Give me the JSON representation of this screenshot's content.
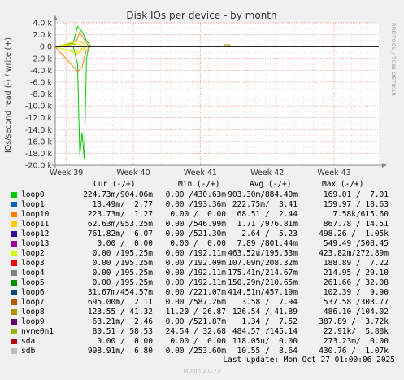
{
  "chart_data": {
    "type": "line",
    "title": "Disk IOs per device - by month",
    "ylabel": "IOs/second read (-) / write (+)",
    "yticks": [
      "4.0 k",
      "2.0 k",
      "0.0",
      "-2.0 k",
      "-4.0 k",
      "-6.0 k",
      "-8.0 k",
      "-10.0 k",
      "-12.0 k",
      "-14.0 k",
      "-16.0 k",
      "-18.0 k",
      "-20.0 k"
    ],
    "ytick_values": [
      4000,
      2000,
      0,
      -2000,
      -4000,
      -6000,
      -8000,
      -10000,
      -12000,
      -14000,
      -16000,
      -18000,
      -20000
    ],
    "ylim": [
      -20000,
      4000
    ],
    "xticks": [
      "Week 39",
      "Week 40",
      "Week 41",
      "Week 42",
      "Week 43"
    ],
    "xtick_positions": [
      0.5,
      3.5,
      6.5,
      9.5,
      12.5
    ],
    "xlim": [
      0,
      14.5
    ],
    "series": [
      {
        "name": "loop0",
        "color": "#00cc00",
        "read": [
          [
            0,
            0
          ],
          [
            0.8,
            0
          ],
          [
            1.0,
            -3000
          ],
          [
            1.1,
            -18500
          ],
          [
            1.2,
            -14500
          ],
          [
            1.3,
            -19000
          ],
          [
            1.4,
            -2000
          ],
          [
            1.5,
            0
          ],
          [
            14.5,
            0
          ]
        ],
        "write": [
          [
            0,
            0
          ],
          [
            0.8,
            600
          ],
          [
            1.0,
            3400
          ],
          [
            1.2,
            2500
          ],
          [
            1.4,
            1000
          ],
          [
            1.6,
            0
          ],
          [
            14.5,
            0
          ]
        ]
      },
      {
        "name": "loop1",
        "color": "#0066b3",
        "read": [
          [
            0,
            0
          ],
          [
            14.5,
            0
          ]
        ],
        "write": [
          [
            0,
            0
          ],
          [
            14.5,
            0
          ]
        ]
      },
      {
        "name": "loop10",
        "color": "#ff8000",
        "read": [
          [
            0,
            0
          ],
          [
            1.0,
            -4200
          ],
          [
            1.2,
            -3500
          ],
          [
            1.4,
            -600
          ],
          [
            1.6,
            0
          ],
          [
            14.5,
            0
          ]
        ],
        "write": [
          [
            0,
            0
          ],
          [
            0.9,
            400
          ],
          [
            1.1,
            2400
          ],
          [
            1.3,
            1200
          ],
          [
            1.5,
            0
          ],
          [
            14.5,
            0
          ]
        ]
      },
      {
        "name": "loop11",
        "color": "#ffcc00",
        "read": [
          [
            0,
            0
          ],
          [
            1.0,
            -1200
          ],
          [
            1.2,
            -600
          ],
          [
            1.4,
            0
          ],
          [
            14.5,
            0
          ]
        ],
        "write": [
          [
            0,
            0
          ],
          [
            1.0,
            900
          ],
          [
            1.2,
            700
          ],
          [
            1.4,
            0
          ],
          [
            14.5,
            0
          ]
        ]
      },
      {
        "name": "loop12",
        "color": "#330099",
        "read": [
          [
            0,
            0
          ],
          [
            14.5,
            0
          ]
        ],
        "write": [
          [
            0,
            0
          ],
          [
            14.5,
            0
          ]
        ]
      },
      {
        "name": "loop13",
        "color": "#990099",
        "read": [
          [
            0,
            0
          ],
          [
            14.5,
            0
          ]
        ],
        "write": [
          [
            0,
            0
          ],
          [
            14.5,
            0
          ]
        ]
      },
      {
        "name": "loop2",
        "color": "#ccff00",
        "read": [
          [
            0,
            0
          ],
          [
            0.9,
            -1000
          ],
          [
            1.1,
            -600
          ],
          [
            1.3,
            0
          ],
          [
            14.5,
            0
          ]
        ],
        "write": [
          [
            0,
            0
          ],
          [
            0.9,
            500
          ],
          [
            1.1,
            300
          ],
          [
            1.3,
            0
          ],
          [
            14.5,
            0
          ]
        ]
      },
      {
        "name": "loop3",
        "color": "#ff0000",
        "read": [
          [
            0,
            0
          ],
          [
            14.5,
            0
          ]
        ],
        "write": [
          [
            0,
            0
          ],
          [
            14.5,
            0
          ]
        ]
      },
      {
        "name": "loop4",
        "color": "#808080",
        "read": [
          [
            0,
            0
          ],
          [
            14.5,
            0
          ]
        ],
        "write": [
          [
            0,
            0
          ],
          [
            14.5,
            0
          ]
        ]
      },
      {
        "name": "loop5",
        "color": "#008f00",
        "read": [
          [
            0,
            0
          ],
          [
            14.5,
            0
          ]
        ],
        "write": [
          [
            0,
            0
          ],
          [
            14.5,
            0
          ]
        ]
      },
      {
        "name": "loop6",
        "color": "#00487d",
        "read": [
          [
            0,
            0
          ],
          [
            14.5,
            0
          ]
        ],
        "write": [
          [
            0,
            0
          ],
          [
            14.5,
            0
          ]
        ]
      },
      {
        "name": "loop7",
        "color": "#b35a00",
        "read": [
          [
            0,
            0
          ],
          [
            14.5,
            0
          ]
        ],
        "write": [
          [
            0,
            0
          ],
          [
            14.5,
            0
          ]
        ]
      },
      {
        "name": "loop8",
        "color": "#b38f00",
        "read": [
          [
            0,
            0
          ],
          [
            14.5,
            0
          ]
        ],
        "write": [
          [
            0,
            0
          ],
          [
            7.5,
            0
          ],
          [
            7.6,
            300
          ],
          [
            7.8,
            300
          ],
          [
            7.9,
            0
          ],
          [
            14.5,
            0
          ]
        ]
      },
      {
        "name": "loop9",
        "color": "#6b006b",
        "read": [
          [
            0,
            0
          ],
          [
            14.5,
            0
          ]
        ],
        "write": [
          [
            0,
            0
          ],
          [
            14.5,
            0
          ]
        ]
      },
      {
        "name": "nvme0n1",
        "color": "#8fb300",
        "read": [
          [
            0,
            0
          ],
          [
            14.5,
            0
          ]
        ],
        "write": [
          [
            0,
            0
          ],
          [
            14.5,
            0
          ]
        ]
      },
      {
        "name": "sda",
        "color": "#b30000",
        "read": [
          [
            0,
            0
          ],
          [
            14.5,
            0
          ]
        ],
        "write": [
          [
            0,
            0
          ],
          [
            14.5,
            0
          ]
        ]
      },
      {
        "name": "sdb",
        "color": "#bebebe",
        "read": [
          [
            0,
            0
          ],
          [
            14.5,
            0
          ]
        ],
        "write": [
          [
            0,
            0
          ],
          [
            14.5,
            0
          ]
        ]
      }
    ]
  },
  "legend": {
    "headers": {
      "cur": "Cur (-/+)",
      "min": "Min (-/+)",
      "avg": "Avg (-/+)",
      "max": "Max (-/+)"
    },
    "rows": [
      {
        "name": "loop0",
        "color": "#00cc00",
        "cur": "224.73m/904.06m",
        "min": "0.00 /430.63m",
        "avg": "903.30m/884.40m",
        "max": "169.01 /  7.01"
      },
      {
        "name": "loop1",
        "color": "#0066b3",
        "cur": "13.49m/  2.77",
        "min": "0.00 /193.36m",
        "avg": "222.75m/  3.41",
        "max": "159.97 / 18.63"
      },
      {
        "name": "loop10",
        "color": "#ff8000",
        "cur": "223.73m/  1.27",
        "min": "0.00 /  0.00",
        "avg": "68.51 /  2.44",
        "max": "7.58k/615.60"
      },
      {
        "name": "loop11",
        "color": "#ffcc00",
        "cur": "62.63m/953.25m",
        "min": "0.00 /546.99m",
        "avg": "1.71 /976.81m",
        "max": "867.78 / 14.51"
      },
      {
        "name": "loop12",
        "color": "#330099",
        "cur": "761.82m/  6.07",
        "min": "0.00 /521.30m",
        "avg": "2.64 /  5.23",
        "max": "498.26 /  1.05k"
      },
      {
        "name": "loop13",
        "color": "#990099",
        "cur": "0.00 /  0.00",
        "min": "0.00 /  0.00",
        "avg": "7.89 /801.44m",
        "max": "549.49 /508.45"
      },
      {
        "name": "loop2",
        "color": "#ccff00",
        "cur": "0.00 /195.25m",
        "min": "0.00 /192.11m",
        "avg": "463.52u/195.53m",
        "max": "423.82m/272.89m"
      },
      {
        "name": "loop3",
        "color": "#ff0000",
        "cur": "0.00 /195.25m",
        "min": "0.00 /192.09m",
        "avg": "107.09m/208.32m",
        "max": "188.89 /  7.22"
      },
      {
        "name": "loop4",
        "color": "#808080",
        "cur": "0.00 /195.25m",
        "min": "0.00 /192.11m",
        "avg": "175.41m/214.67m",
        "max": "214.95 / 29.10"
      },
      {
        "name": "loop5",
        "color": "#008f00",
        "cur": "0.00 /195.25m",
        "min": "0.00 /192.11m",
        "avg": "150.29m/210.65m",
        "max": "261.66 / 32.08"
      },
      {
        "name": "loop6",
        "color": "#00487d",
        "cur": "31.67m/454.57m",
        "min": "0.00 /221.07m",
        "avg": "414.51m/457.19m",
        "max": "102.39 /  9.90"
      },
      {
        "name": "loop7",
        "color": "#b35a00",
        "cur": "695.00m/  2.11",
        "min": "0.00 /587.26m",
        "avg": "3.58 /  7.94",
        "max": "537.58 /303.77"
      },
      {
        "name": "loop8",
        "color": "#b38f00",
        "cur": "123.55 / 41.32",
        "min": "11.20 / 26.87",
        "avg": "126.54 / 41.89",
        "max": "486.10 /104.02"
      },
      {
        "name": "loop9",
        "color": "#6b006b",
        "cur": "63.21m/  2.46",
        "min": "0.00 /521.87m",
        "avg": "1.34 /  7.52",
        "max": "387.89 /  3.72k"
      },
      {
        "name": "nvme0n1",
        "color": "#8fb300",
        "cur": "80.51 / 58.53",
        "min": "24.54 / 32.68",
        "avg": "484.57 /145.14",
        "max": "22.91k/  5.88k"
      },
      {
        "name": "sda",
        "color": "#b30000",
        "cur": "0.00 /  0.00",
        "min": "0.00 /  0.00",
        "avg": "118.05u/  0.00",
        "max": "273.23m/  0.00"
      },
      {
        "name": "sdb",
        "color": "#bebebe",
        "cur": "998.91m/  6.80",
        "min": "0.00 /253.60m",
        "avg": "10.55 /  8.64",
        "max": "430.76 /  1.07k"
      }
    ]
  },
  "footer": {
    "last_update": "Last update: Mon Oct 27 01:00:06 2025"
  },
  "credit": "Munin 2.0.73",
  "side_label": "RRDTOOL / TOBI OETIKER"
}
